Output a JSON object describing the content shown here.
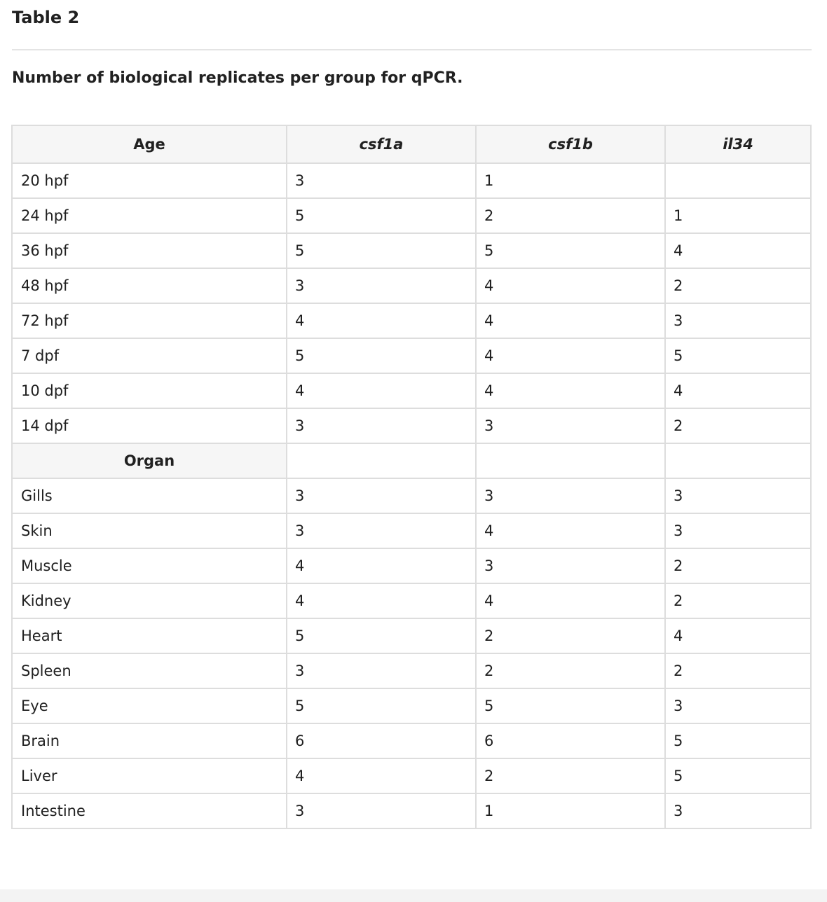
{
  "table_label": "Table 2",
  "caption": "Number of biological replicates per group for qPCR.",
  "columns": [
    "Age",
    "csf1a",
    "csf1b",
    "il34"
  ],
  "age_rows": [
    {
      "label": "20 hpf",
      "csf1a": "3",
      "csf1b": "1",
      "il34": ""
    },
    {
      "label": "24 hpf",
      "csf1a": "5",
      "csf1b": "2",
      "il34": "1"
    },
    {
      "label": "36 hpf",
      "csf1a": "5",
      "csf1b": "5",
      "il34": "4"
    },
    {
      "label": "48 hpf",
      "csf1a": "3",
      "csf1b": "4",
      "il34": "2"
    },
    {
      "label": "72 hpf",
      "csf1a": "4",
      "csf1b": "4",
      "il34": "3"
    },
    {
      "label": "7 dpf",
      "csf1a": "5",
      "csf1b": "4",
      "il34": "5"
    },
    {
      "label": "10 dpf",
      "csf1a": "4",
      "csf1b": "4",
      "il34": "4"
    },
    {
      "label": "14 dpf",
      "csf1a": "3",
      "csf1b": "3",
      "il34": "2"
    }
  ],
  "organ_header": "Organ",
  "organ_rows": [
    {
      "label": "Gills",
      "csf1a": "3",
      "csf1b": "3",
      "il34": "3"
    },
    {
      "label": "Skin",
      "csf1a": "3",
      "csf1b": "4",
      "il34": "3"
    },
    {
      "label": "Muscle",
      "csf1a": "4",
      "csf1b": "3",
      "il34": "2"
    },
    {
      "label": "Kidney",
      "csf1a": "4",
      "csf1b": "4",
      "il34": "2"
    },
    {
      "label": "Heart",
      "csf1a": "5",
      "csf1b": "2",
      "il34": "4"
    },
    {
      "label": "Spleen",
      "csf1a": "3",
      "csf1b": "2",
      "il34": "2"
    },
    {
      "label": "Eye",
      "csf1a": "5",
      "csf1b": "5",
      "il34": "3"
    },
    {
      "label": "Brain",
      "csf1a": "6",
      "csf1b": "6",
      "il34": "5"
    },
    {
      "label": "Liver",
      "csf1a": "4",
      "csf1b": "2",
      "il34": "5"
    },
    {
      "label": "Intestine",
      "csf1a": "3",
      "csf1b": "1",
      "il34": "3"
    }
  ]
}
